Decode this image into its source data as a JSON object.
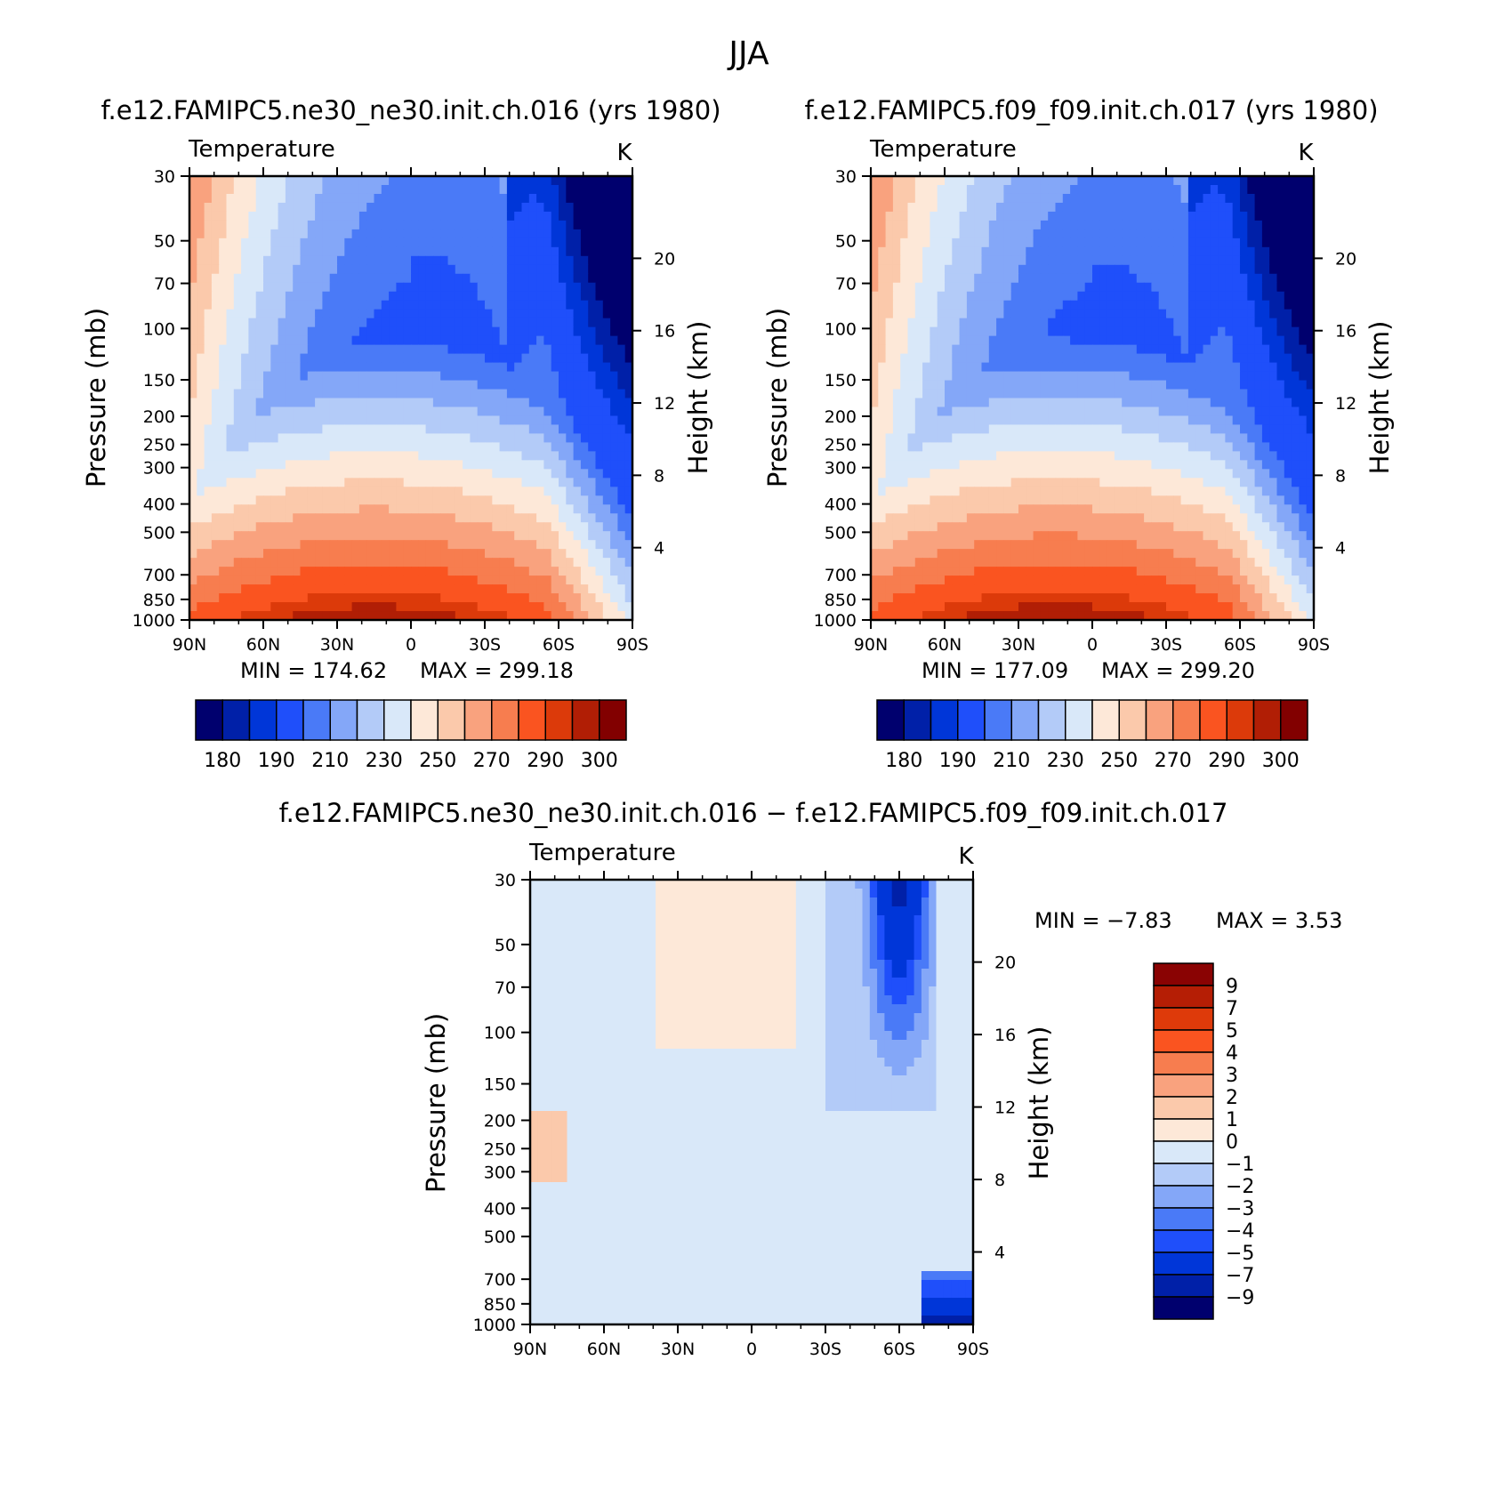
{
  "figure": {
    "title": "JJA"
  },
  "chart_data": [
    {
      "type": "heatmap",
      "title": "f.e12.FAMIPC5.ne30_ne30.init.ch.016 (yrs 1980)",
      "subtitle": "Temperature",
      "units": "K",
      "xlabel": "",
      "ylabel": "Pressure (mb)",
      "ylabel_right": "Height (km)",
      "x_ticks": [
        "90N",
        "60N",
        "30N",
        "0",
        "30S",
        "60S",
        "90S"
      ],
      "y_ticks": [
        30,
        50,
        70,
        100,
        150,
        200,
        250,
        300,
        400,
        500,
        700,
        850,
        1000
      ],
      "y_right_ticks": [
        20,
        16,
        12,
        8,
        4
      ],
      "min_label": "MIN = 174.62",
      "max_label": "MAX = 299.18",
      "min": 174.62,
      "max": 299.18,
      "colorbar": {
        "labels": [
          "180",
          "190",
          "210",
          "230",
          "250",
          "270",
          "290",
          "300"
        ],
        "colors": [
          "#00006e",
          "#0020a8",
          "#0036d8",
          "#1f4ffa",
          "#4a7af7",
          "#84a7f8",
          "#b3cbf8",
          "#d9e8f9",
          "#fde8d8",
          "#fbc9ab",
          "#f9a27e",
          "#f77d4f",
          "#fa5420",
          "#dc3a0a",
          "#b11e05",
          "#820000"
        ]
      },
      "variant": "a"
    },
    {
      "type": "heatmap",
      "title": "f.e12.FAMIPC5.f09_f09.init.ch.017 (yrs 1980)",
      "subtitle": "Temperature",
      "units": "K",
      "xlabel": "",
      "ylabel": "Pressure (mb)",
      "ylabel_right": "Height (km)",
      "x_ticks": [
        "90N",
        "60N",
        "30N",
        "0",
        "30S",
        "60S",
        "90S"
      ],
      "y_ticks": [
        30,
        50,
        70,
        100,
        150,
        200,
        250,
        300,
        400,
        500,
        700,
        850,
        1000
      ],
      "y_right_ticks": [
        20,
        16,
        12,
        8,
        4
      ],
      "min_label": "MIN = 177.09",
      "max_label": "MAX = 299.20",
      "min": 177.09,
      "max": 299.2,
      "colorbar": {
        "labels": [
          "180",
          "190",
          "210",
          "230",
          "250",
          "270",
          "290",
          "300"
        ],
        "colors": [
          "#00006e",
          "#0020a8",
          "#0036d8",
          "#1f4ffa",
          "#4a7af7",
          "#84a7f8",
          "#b3cbf8",
          "#d9e8f9",
          "#fde8d8",
          "#fbc9ab",
          "#f9a27e",
          "#f77d4f",
          "#fa5420",
          "#dc3a0a",
          "#b11e05",
          "#820000"
        ]
      },
      "variant": "b"
    },
    {
      "type": "heatmap",
      "title": "f.e12.FAMIPC5.ne30_ne30.init.ch.016 − f.e12.FAMIPC5.f09_f09.init.ch.017",
      "subtitle": "Temperature",
      "units": "K",
      "xlabel": "",
      "ylabel": "Pressure (mb)",
      "ylabel_right": "Height (km)",
      "x_ticks": [
        "90N",
        "60N",
        "30N",
        "0",
        "30S",
        "60S",
        "90S"
      ],
      "y_ticks": [
        30,
        50,
        70,
        100,
        150,
        200,
        250,
        300,
        400,
        500,
        700,
        850,
        1000
      ],
      "y_right_ticks": [
        20,
        16,
        12,
        8,
        4
      ],
      "min_label": "MIN =   −7.83",
      "max_label": "MAX =    3.53",
      "min": -7.83,
      "max": 3.53,
      "colorbar": {
        "labels": [
          "9",
          "7",
          "5",
          "4",
          "3",
          "2",
          "1",
          "0",
          "−1",
          "−2",
          "−3",
          "−4",
          "−5",
          "−7",
          "−9"
        ],
        "colors": [
          "#8a0303",
          "#b51e05",
          "#de3a0a",
          "#fa5420",
          "#f77d4f",
          "#f9a27e",
          "#fbc9ab",
          "#fde8d8",
          "#d9e8f9",
          "#b3cbf8",
          "#84a7f8",
          "#4a7af7",
          "#1f4ffa",
          "#0036d8",
          "#0020a8",
          "#00006e"
        ]
      },
      "variant": "diff"
    }
  ]
}
